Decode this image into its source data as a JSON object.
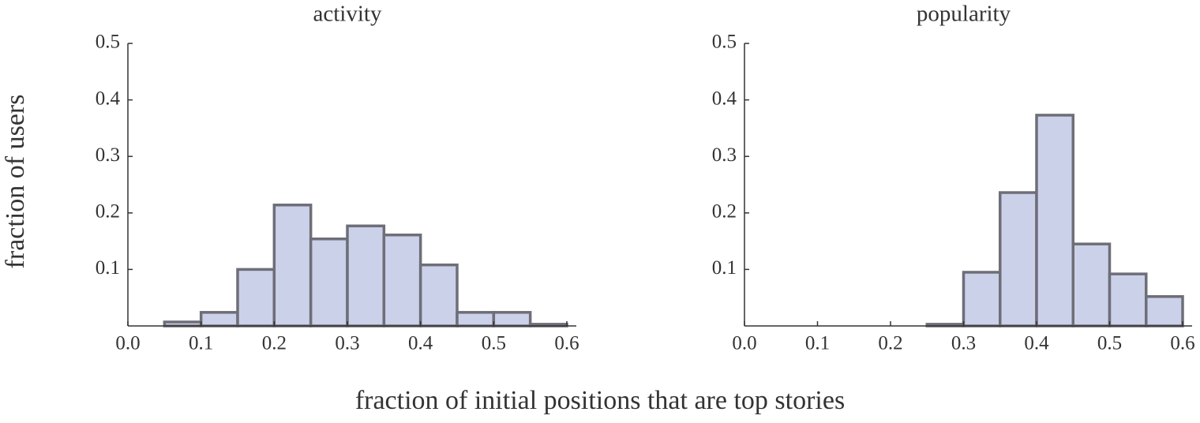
{
  "chart_data": [
    {
      "type": "histogram",
      "title": "activity",
      "bins": [
        0,
        0.05,
        0.1,
        0.15,
        0.2,
        0.25,
        0.3,
        0.35,
        0.4,
        0.45,
        0.5,
        0.55,
        0.6
      ],
      "values": [
        0,
        0.007,
        0.024,
        0.1,
        0.214,
        0.154,
        0.177,
        0.161,
        0.108,
        0.024,
        0.024,
        0.003
      ],
      "color": "#ccd1ea",
      "edge_color": "#6e6e78",
      "xlim": [
        0,
        0.6
      ],
      "xticks": [
        {
          "value": 0,
          "label": "0.0"
        },
        0.1,
        0.2,
        0.3,
        0.4,
        0.5,
        0.6
      ],
      "ylim": [
        0,
        0.5
      ],
      "yticks": [
        0.1,
        0.2,
        0.3,
        0.4,
        0.5
      ]
    },
    {
      "type": "histogram",
      "title": "popularity",
      "bins": [
        0,
        0.05,
        0.1,
        0.15,
        0.2,
        0.25,
        0.3,
        0.35,
        0.4,
        0.45,
        0.5,
        0.55,
        0.6
      ],
      "values": [
        0,
        0,
        0,
        0,
        0,
        0.003,
        0.095,
        0.236,
        0.373,
        0.145,
        0.092,
        0.052
      ],
      "color": "#ccd1ea",
      "edge_color": "#6e6e78",
      "xlim": [
        0,
        0.6
      ],
      "xticks": [
        {
          "value": 0,
          "label": "0.0"
        },
        0.1,
        0.2,
        0.3,
        0.4,
        0.5,
        0.6
      ],
      "ylim": [
        0,
        0.5
      ],
      "yticks": [
        0.1,
        0.2,
        0.3,
        0.4,
        0.5
      ]
    }
  ],
  "xlabel": "fraction of initial positions that are top stories",
  "ylabel": "fraction of users"
}
